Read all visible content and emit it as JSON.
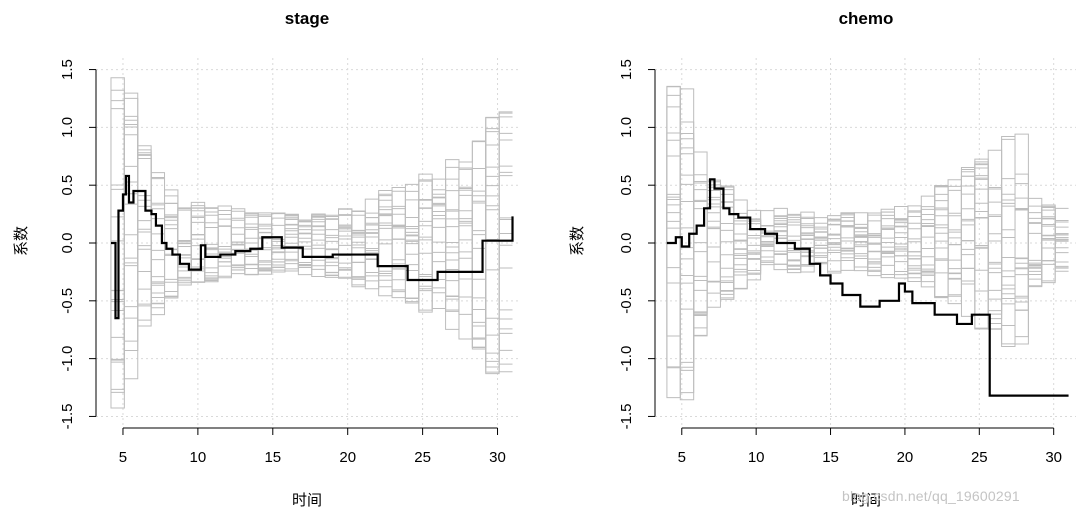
{
  "watermark": "blog.csdn.net/qq_19600291",
  "chart_data": [
    {
      "type": "line",
      "title": "stage",
      "xlabel": "时间",
      "ylabel": "系数",
      "xlim": [
        3.2,
        31.5
      ],
      "ylim": [
        -1.6,
        1.6
      ],
      "xticks": [
        5,
        10,
        15,
        20,
        25,
        30
      ],
      "yticks": [
        -1.5,
        -1.0,
        -0.5,
        0.0,
        0.5,
        1.0,
        1.5
      ],
      "grid": true,
      "series": [
        {
          "role": "observed",
          "color": "#000000",
          "step": true,
          "x": [
            4.2,
            4.5,
            4.7,
            5.0,
            5.2,
            5.4,
            5.7,
            6.0,
            6.5,
            6.9,
            7.2,
            7.6,
            7.9,
            8.3,
            8.8,
            9.4,
            10.2,
            10.5,
            11.5,
            12.5,
            13.5,
            14.3,
            15.6,
            17.0,
            19.0,
            22.0,
            24.0,
            26.0,
            29.0,
            31.0
          ],
          "y": [
            0.0,
            -0.65,
            0.28,
            0.42,
            0.58,
            0.35,
            0.45,
            0.45,
            0.28,
            0.25,
            0.15,
            0.0,
            -0.05,
            -0.1,
            -0.18,
            -0.23,
            -0.02,
            -0.12,
            -0.1,
            -0.07,
            -0.05,
            0.05,
            -0.04,
            -0.12,
            -0.1,
            -0.2,
            -0.32,
            -0.25,
            0.02,
            0.23
          ]
        },
        {
          "role": "simulated",
          "color": "#bdbdbd",
          "count": 20,
          "envelope_halfwidth": [
            1.5,
            0.9,
            0.62,
            0.5,
            0.42,
            0.38,
            0.34,
            0.32,
            0.3,
            0.29,
            0.28,
            0.28,
            0.28,
            0.29,
            0.3,
            0.33,
            0.38,
            0.42,
            0.46,
            0.5,
            0.55,
            0.6,
            0.66,
            0.75,
            0.85,
            1.0,
            1.2,
            1.45
          ]
        }
      ]
    },
    {
      "type": "line",
      "title": "chemo",
      "xlabel": "时间",
      "ylabel": "系数",
      "xlim": [
        3.2,
        31.5
      ],
      "ylim": [
        -1.6,
        1.6
      ],
      "xticks": [
        5,
        10,
        15,
        20,
        25,
        30
      ],
      "yticks": [
        -1.5,
        -1.0,
        -0.5,
        0.0,
        0.5,
        1.0,
        1.5
      ],
      "grid": true,
      "series": [
        {
          "role": "observed",
          "color": "#000000",
          "step": true,
          "x": [
            4.0,
            4.6,
            5.0,
            5.5,
            6.0,
            6.5,
            6.9,
            7.2,
            7.8,
            8.2,
            8.8,
            9.6,
            10.6,
            11.4,
            12.6,
            13.6,
            14.3,
            15.0,
            15.8,
            17.0,
            18.3,
            19.6,
            20.0,
            20.5,
            22.0,
            23.5,
            24.5,
            25.7,
            31.0
          ],
          "y": [
            0.0,
            0.05,
            -0.03,
            0.08,
            0.15,
            0.3,
            0.55,
            0.47,
            0.3,
            0.25,
            0.22,
            0.12,
            0.08,
            0.0,
            -0.05,
            -0.18,
            -0.28,
            -0.35,
            -0.45,
            -0.55,
            -0.5,
            -0.35,
            -0.42,
            -0.52,
            -0.62,
            -0.7,
            -0.62,
            -1.32,
            -1.32
          ]
        },
        {
          "role": "simulated",
          "color": "#bdbdbd",
          "count": 20,
          "envelope_halfwidth": [
            1.5,
            0.9,
            0.62,
            0.5,
            0.42,
            0.36,
            0.32,
            0.3,
            0.28,
            0.27,
            0.26,
            0.26,
            0.27,
            0.28,
            0.3,
            0.32,
            0.36,
            0.42,
            0.5,
            0.58,
            0.66,
            0.75,
            0.84,
            0.94,
            1.0,
            0.4,
            0.35,
            0.32
          ]
        }
      ]
    }
  ]
}
